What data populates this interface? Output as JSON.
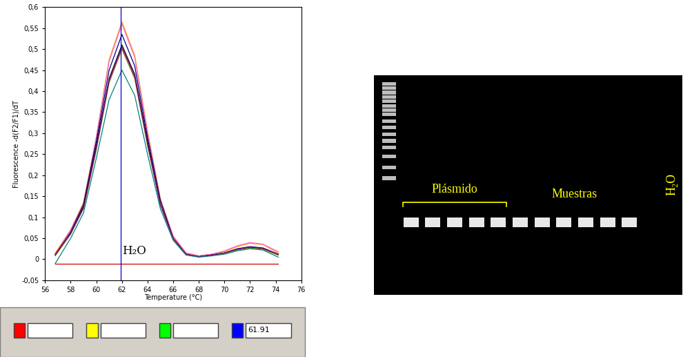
{
  "chart_data": {
    "type": "line",
    "y_label": "Fluorescence -d(F2/F1)/dT",
    "x_label": "Temperature (°C)",
    "xlim": [
      56,
      76
    ],
    "xticks": [
      56,
      58,
      60,
      62,
      64,
      66,
      68,
      70,
      72,
      74,
      76
    ],
    "ylim": [
      -0.05,
      0.6
    ],
    "yticks": [
      {
        "value": -0.05,
        "label": "-0,05"
      },
      0,
      {
        "value": 0.05,
        "label": "0,05"
      },
      {
        "value": 0.1,
        "label": "0,1"
      },
      {
        "value": 0.15,
        "label": "0,15"
      },
      {
        "value": 0.2,
        "label": "0,2"
      },
      {
        "value": 0.25,
        "label": "0,25"
      },
      {
        "value": 0.3,
        "label": "0,3"
      },
      {
        "value": 0.35,
        "label": "0,35"
      },
      {
        "value": 0.4,
        "label": "0,4"
      },
      {
        "value": 0.45,
        "label": "0,45"
      },
      {
        "value": 0.5,
        "label": "0,5"
      },
      {
        "value": 0.55,
        "label": "0,55"
      },
      {
        "value": 0.6,
        "label": "0,6"
      }
    ],
    "grid": false,
    "x": [
      56.8,
      58,
      59,
      60,
      61,
      62,
      63,
      64,
      65,
      66,
      67,
      68,
      69,
      70,
      71,
      72,
      73,
      74.2
    ],
    "series": [
      {
        "color": "#ff9900",
        "values": [
          0.015,
          0.07,
          0.135,
          0.29,
          0.475,
          0.565,
          0.485,
          0.305,
          0.145,
          0.055,
          0.015,
          0.008,
          0.012,
          0.018,
          0.03,
          0.038,
          0.035,
          0.015
        ]
      },
      {
        "color": "#ff66cc",
        "values": [
          0.012,
          0.07,
          0.13,
          0.29,
          0.47,
          0.56,
          0.48,
          0.3,
          0.14,
          0.055,
          0.015,
          0.008,
          0.012,
          0.02,
          0.032,
          0.04,
          0.036,
          0.018
        ]
      },
      {
        "color": "#000080",
        "values": [
          0.01,
          0.065,
          0.13,
          0.28,
          0.45,
          0.535,
          0.46,
          0.29,
          0.14,
          0.05,
          0.012,
          0.006,
          0.01,
          0.015,
          0.025,
          0.03,
          0.027,
          0.012
        ]
      },
      {
        "color": "#000000",
        "values": [
          0.01,
          0.06,
          0.125,
          0.27,
          0.43,
          0.51,
          0.44,
          0.28,
          0.13,
          0.05,
          0.012,
          0.006,
          0.01,
          0.015,
          0.024,
          0.028,
          0.025,
          0.01
        ]
      },
      {
        "color": "#808000",
        "values": [
          0.008,
          0.06,
          0.12,
          0.26,
          0.42,
          0.5,
          0.43,
          0.27,
          0.13,
          0.048,
          0.012,
          0.006,
          0.009,
          0.014,
          0.022,
          0.027,
          0.024,
          0.01
        ]
      },
      {
        "color": "#800080",
        "values": [
          0.012,
          0.062,
          0.122,
          0.265,
          0.425,
          0.505,
          0.435,
          0.275,
          0.13,
          0.05,
          0.012,
          0.006,
          0.01,
          0.015,
          0.024,
          0.029,
          0.026,
          0.012
        ]
      },
      {
        "color": "#008080",
        "values": [
          -0.01,
          0.05,
          0.11,
          0.24,
          0.38,
          0.45,
          0.39,
          0.25,
          0.12,
          0.045,
          0.01,
          0.005,
          0.008,
          0.012,
          0.02,
          0.025,
          0.022,
          0.005
        ]
      },
      {
        "color": "#cc0000",
        "values": [
          -0.01,
          -0.01,
          -0.01,
          -0.01,
          -0.01,
          -0.01,
          -0.01,
          -0.01,
          -0.01,
          -0.01,
          -0.01,
          -0.01,
          -0.01,
          -0.01,
          -0.01,
          -0.01,
          -0.01,
          -0.01
        ]
      }
    ],
    "annotations": [
      {
        "text": "H₂O",
        "x": 62,
        "y": 0.005
      }
    ],
    "cursor_value": 61.91
  },
  "gel": {
    "groups": [
      {
        "label": "Plásmido",
        "lanes": 5
      },
      {
        "label": "Muestras",
        "lanes": 6
      }
    ],
    "water_label": "H₂O"
  }
}
